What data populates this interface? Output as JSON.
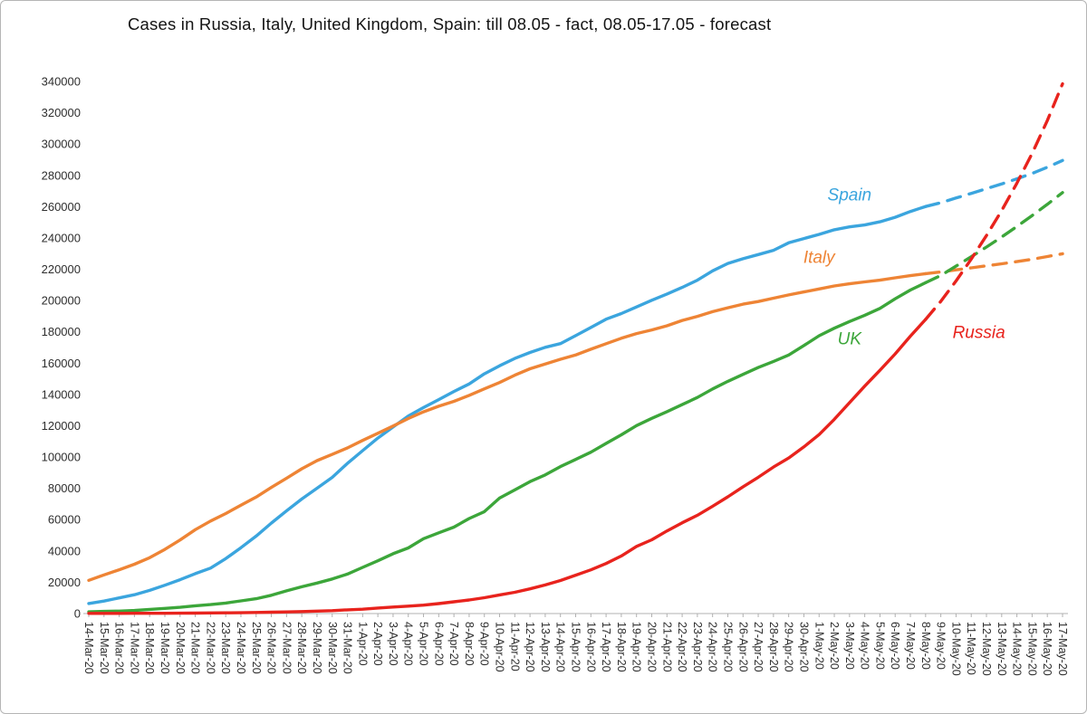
{
  "chart_data": {
    "type": "line",
    "title": "Cases in Russia, Italy, United Kingdom, Spain: till 08.05 - fact, 08.05-17.05 - forecast",
    "xlabel": "",
    "ylabel": "",
    "ylim": [
      0,
      340000
    ],
    "grid": false,
    "legend_position": "inline-labels",
    "forecast_start_index": 55,
    "forecast_note": "solid = fact till 08.05, dashed = forecast 08.05-17.05",
    "y_ticks": [
      0,
      20000,
      40000,
      60000,
      80000,
      100000,
      120000,
      140000,
      160000,
      180000,
      200000,
      220000,
      240000,
      260000,
      280000,
      300000,
      320000,
      340000
    ],
    "x_labels": [
      "14-Mar-20",
      "15-Mar-20",
      "16-Mar-20",
      "17-Mar-20",
      "18-Mar-20",
      "19-Mar-20",
      "20-Mar-20",
      "21-Mar-20",
      "22-Mar-20",
      "23-Mar-20",
      "24-Mar-20",
      "25-Mar-20",
      "26-Mar-20",
      "27-Mar-20",
      "28-Mar-20",
      "29-Mar-20",
      "30-Mar-20",
      "31-Mar-20",
      "1-Apr-20",
      "2-Apr-20",
      "3-Apr-20",
      "4-Apr-20",
      "5-Apr-20",
      "6-Apr-20",
      "7-Apr-20",
      "8-Apr-20",
      "9-Apr-20",
      "10-Apr-20",
      "11-Apr-20",
      "12-Apr-20",
      "13-Apr-20",
      "14-Apr-20",
      "15-Apr-20",
      "16-Apr-20",
      "17-Apr-20",
      "18-Apr-20",
      "19-Apr-20",
      "20-Apr-20",
      "21-Apr-20",
      "22-Apr-20",
      "23-Apr-20",
      "24-Apr-20",
      "25-Apr-20",
      "26-Apr-20",
      "27-Apr-20",
      "28-Apr-20",
      "29-Apr-20",
      "30-Apr-20",
      "1-May-20",
      "2-May-20",
      "3-May-20",
      "4-May-20",
      "5-May-20",
      "6-May-20",
      "7-May-20",
      "8-May-20",
      "9-May-20",
      "10-May-20",
      "11-May-20",
      "12-May-20",
      "13-May-20",
      "14-May-20",
      "15-May-20",
      "16-May-20",
      "17-May-20"
    ],
    "series": [
      {
        "name": "Spain",
        "color": "#3BA5DE",
        "values": [
          6400,
          8000,
          10000,
          12000,
          14800,
          18100,
          21600,
          25500,
          29000,
          35100,
          42100,
          49500,
          57800,
          65700,
          73200,
          80100,
          87000,
          95900,
          104100,
          112100,
          119200,
          126200,
          131600,
          136700,
          141900,
          146700,
          153200,
          158300,
          163000,
          166800,
          170100,
          172500,
          177600,
          182800,
          188100,
          191700,
          195900,
          200200,
          204200,
          208400,
          213000,
          219000,
          223700,
          226700,
          229400,
          232100,
          236900,
          239600,
          242300,
          245200,
          247100,
          248300,
          250300,
          253200,
          256900,
          260100,
          262500,
          265500,
          268500,
          271500,
          274500,
          277800,
          281200,
          285200,
          289500
        ]
      },
      {
        "name": "Italy",
        "color": "#EE8435",
        "values": [
          21200,
          24700,
          28000,
          31500,
          35700,
          41000,
          47000,
          53600,
          59100,
          63900,
          69200,
          74400,
          80600,
          86500,
          92500,
          97700,
          101700,
          105800,
          110600,
          115200,
          119800,
          124600,
          128900,
          132500,
          135600,
          139400,
          143600,
          147600,
          152300,
          156400,
          159500,
          162500,
          165200,
          168900,
          172400,
          175900,
          178900,
          181200,
          183900,
          187300,
          189900,
          192900,
          195400,
          197700,
          199400,
          201500,
          203600,
          205500,
          207400,
          209300,
          210700,
          211900,
          213000,
          214500,
          215900,
          217200,
          218300,
          219600,
          220900,
          222200,
          223500,
          224900,
          226400,
          228100,
          229900
        ]
      },
      {
        "name": "UK",
        "color": "#3CA63A",
        "values": [
          1100,
          1400,
          1550,
          1950,
          2650,
          3300,
          4000,
          5000,
          5700,
          6700,
          8100,
          9500,
          11700,
          14500,
          17100,
          19500,
          22100,
          25200,
          29500,
          33700,
          38200,
          41900,
          47800,
          51600,
          55200,
          60700,
          65100,
          73800,
          79000,
          84300,
          88600,
          93900,
          98500,
          103100,
          108700,
          114200,
          120100,
          124700,
          129000,
          133500,
          138100,
          143500,
          148400,
          152800,
          157200,
          161100,
          165200,
          171300,
          177500,
          182300,
          186600,
          190600,
          195000,
          201100,
          206700,
          211400,
          216000,
          222000,
          228000,
          234200,
          240600,
          247300,
          254300,
          261500,
          269000
        ]
      },
      {
        "name": "Russia",
        "color": "#E8231D",
        "values": [
          100,
          100,
          100,
          150,
          150,
          200,
          250,
          300,
          400,
          450,
          500,
          700,
          850,
          1050,
          1250,
          1550,
          1850,
          2350,
          2800,
          3550,
          4150,
          4750,
          5400,
          6350,
          7500,
          8700,
          10100,
          11900,
          13600,
          15800,
          18300,
          21100,
          24500,
          27900,
          32000,
          36800,
          42900,
          47100,
          52800,
          58000,
          62800,
          68600,
          74600,
          81000,
          87100,
          93600,
          99400,
          106500,
          114400,
          124100,
          134700,
          145300,
          155400,
          165900,
          177200,
          187900,
          199500,
          212500,
          226500,
          241500,
          257500,
          275000,
          294000,
          315000,
          338500
        ]
      }
    ],
    "annotations": [
      {
        "text": "Spain",
        "color": "#3BA5DE",
        "x_index": 50,
        "y_value": 264000
      },
      {
        "text": "Italy",
        "color": "#EE8435",
        "x_index": 48,
        "y_value": 224000
      },
      {
        "text": "UK",
        "color": "#3CA63A",
        "x_index": 50,
        "y_value": 172000
      },
      {
        "text": "Russia",
        "color": "#E8231D",
        "x_index": 58.5,
        "y_value": 176000
      }
    ]
  }
}
